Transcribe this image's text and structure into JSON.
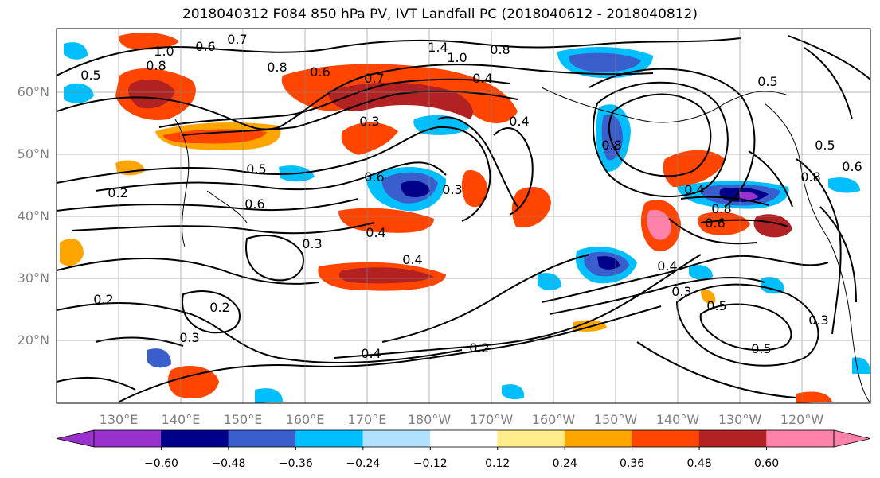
{
  "title": "2018040312 F084 850 hPa PV, IVT Landfall PC (2018040612 - 2018040812)",
  "lat_labels": [
    "60°N",
    "50°N",
    "40°N",
    "30°N",
    "20°N"
  ],
  "lon_labels": [
    "130°E",
    "140°E",
    "150°E",
    "160°E",
    "170°E",
    "180°W",
    "170°W",
    "160°W",
    "150°W",
    "140°W",
    "130°W",
    "120°W"
  ],
  "colorbar": {
    "ticks": [
      "−0.60",
      "−0.48",
      "−0.36",
      "−0.24",
      "−0.12",
      "0.12",
      "0.24",
      "0.36",
      "0.48",
      "0.60"
    ],
    "colors": [
      "#9932cc",
      "#00008b",
      "#3a5fcd",
      "#00bfff",
      "#b0e2ff",
      "#ffffff",
      "#ffec8b",
      "#ffa500",
      "#ff4500",
      "#b22222",
      "#ff82ab"
    ]
  },
  "contour_labels": [
    "0.7",
    "1.0",
    "0.8",
    "0.5",
    "0.6",
    "0.8",
    "0.6",
    "0.7",
    "1.4",
    "1.0",
    "0.8",
    "0.4",
    "0.3",
    "0.6",
    "0.5",
    "0.2",
    "0.6",
    "0.3",
    "0.4",
    "0.3",
    "0.4",
    "0.8",
    "0.4",
    "0.5",
    "0.4",
    "0.2",
    "0.2",
    "0.4",
    "0.2",
    "0.8",
    "0.6",
    "0.4",
    "0.3",
    "0.5",
    "0.3",
    "0.5",
    "0.6",
    "0.8",
    "0.5",
    "0.3"
  ]
}
